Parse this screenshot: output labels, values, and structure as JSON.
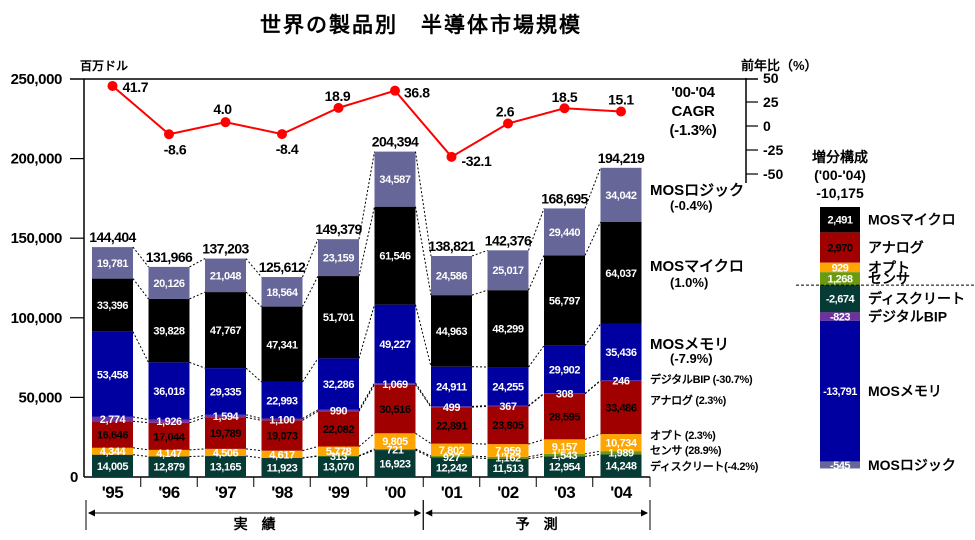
{
  "chart_data": [
    {
      "id": "market_size",
      "type": "bar",
      "stacked": true,
      "title": "世界の製品別　半導体市場規模",
      "xlabel": "",
      "ylabel": "百万ドル",
      "ylim": [
        0,
        250000
      ],
      "yticks": [
        0,
        50000,
        100000,
        150000,
        200000,
        250000
      ],
      "ytick_labels": [
        "0",
        "50,000",
        "100,000",
        "150,000",
        "200,000",
        "250,000"
      ],
      "grid": false,
      "legend": "right",
      "categories": [
        "'95",
        "'96",
        "'97",
        "'98",
        "'99",
        "'00",
        "'01",
        "'02",
        "'03",
        "'04"
      ],
      "periods": [
        {
          "label": "実　績",
          "from": 0,
          "to": 5
        },
        {
          "label": "予　測",
          "from": 6,
          "to": 9
        }
      ],
      "totals": [
        144404,
        131966,
        137203,
        125612,
        149379,
        204394,
        138821,
        142376,
        168695,
        194219
      ],
      "series": [
        {
          "key": "discrete",
          "name": "ディスクリート",
          "color": "#063a34",
          "text_color": "#ffffff",
          "legend": [
            "ディスクリート(-4.2%)"
          ],
          "values": [
            14005,
            12879,
            13165,
            11923,
            13070,
            16923,
            12242,
            11513,
            12954,
            14248
          ]
        },
        {
          "key": "sensor",
          "name": "センサ",
          "color": "#6b9a0e",
          "text_color": "#ffffff",
          "legend": [
            "センサ (28.9%)"
          ],
          "values": [
            null,
            null,
            null,
            null,
            313,
            721,
            927,
            1162,
            1543,
            1989
          ]
        },
        {
          "key": "opto",
          "name": "オプト",
          "color": "#ffa500",
          "text_color": "#ffffff",
          "legend": [
            "オプト (2.3%)"
          ],
          "values": [
            4344,
            4147,
            4506,
            4617,
            5778,
            9805,
            7802,
            7959,
            9157,
            10734
          ]
        },
        {
          "key": "analog",
          "name": "アナログ",
          "color": "#a00000",
          "text_color": "#000000",
          "legend": [
            "アナログ (2.3%)"
          ],
          "values": [
            16646,
            17044,
            19789,
            19073,
            22082,
            30516,
            22891,
            23805,
            28595,
            33486
          ]
        },
        {
          "key": "bip",
          "name": "デジタルBIP",
          "color": "#7030a0",
          "text_color": "#ffffff",
          "legend": [
            "デジタルBIP (-30.7%)"
          ],
          "values": [
            2774,
            1926,
            1594,
            1100,
            990,
            1069,
            499,
            367,
            308,
            246
          ]
        },
        {
          "key": "memory",
          "name": "MOSメモリ",
          "color": "#0000a0",
          "text_color": "#ffffff",
          "legend": [
            "MOSメモリ",
            "(-7.9%)"
          ],
          "values": [
            53458,
            36018,
            29335,
            22993,
            32286,
            49227,
            24911,
            24255,
            29902,
            35436
          ]
        },
        {
          "key": "micro",
          "name": "MOSマイクロ",
          "color": "#000000",
          "text_color": "#ffffff",
          "legend": [
            "MOSマイクロ",
            "(1.0%)"
          ],
          "values": [
            33396,
            39828,
            47767,
            47341,
            51701,
            61546,
            44963,
            48299,
            56797,
            64037
          ]
        },
        {
          "key": "logic",
          "name": "MOSロジック",
          "color": "#666699",
          "text_color": "#ffffff",
          "legend": [
            "MOSロジック",
            "(-0.4%)"
          ],
          "values": [
            19781,
            20126,
            21048,
            18564,
            23159,
            34587,
            24586,
            25017,
            29440,
            34042
          ]
        }
      ],
      "cagr_annotation": [
        "'00-'04",
        "CAGR",
        "(-1.3%)"
      ]
    },
    {
      "id": "yoy_growth",
      "type": "line",
      "axis": "right",
      "ylabel": "前年比（%）",
      "ylim": [
        -50,
        50
      ],
      "yticks": [
        50,
        25,
        0,
        -25,
        -50
      ],
      "ytick_labels": [
        "50",
        "25",
        "0",
        "-25",
        "-50"
      ],
      "categories": [
        "'95",
        "'96",
        "'97",
        "'98",
        "'99",
        "'00",
        "'01",
        "'02",
        "'03",
        "'04"
      ],
      "series": [
        {
          "name": "前年比",
          "color": "#ff0000",
          "values": [
            41.7,
            -8.6,
            4.0,
            -8.4,
            18.9,
            36.8,
            -32.1,
            2.6,
            18.5,
            15.1
          ]
        }
      ]
    },
    {
      "id": "increment",
      "type": "bar",
      "stacked": true,
      "title": "増分構成",
      "subtitle": "('00-'04)",
      "total": -10175,
      "total_label": "-10,175",
      "items": [
        {
          "name": "MOSマイクロ",
          "value": 2491,
          "color": "#000000",
          "text_color": "#ffffff"
        },
        {
          "name": "アナログ",
          "value": 2970,
          "color": "#a00000",
          "text_color": "#000000"
        },
        {
          "name": "オプト",
          "value": 929,
          "color": "#ffa500",
          "text_color": "#ffffff"
        },
        {
          "name": "センサ",
          "value": 1268,
          "color": "#6b9a0e",
          "text_color": "#ffffff"
        },
        {
          "name": "ディスクリート",
          "value": -2674,
          "color": "#063a34",
          "text_color": "#ffffff"
        },
        {
          "name": "デジタルBIP",
          "value": -823,
          "color": "#7030a0",
          "text_color": "#ffffff"
        },
        {
          "name": "MOSメモリ",
          "value": -13791,
          "color": "#0000a0",
          "text_color": "#ffffff"
        },
        {
          "name": "MOSロジック",
          "value": -545,
          "color": "#666699",
          "text_color": "#ffffff"
        }
      ]
    }
  ]
}
